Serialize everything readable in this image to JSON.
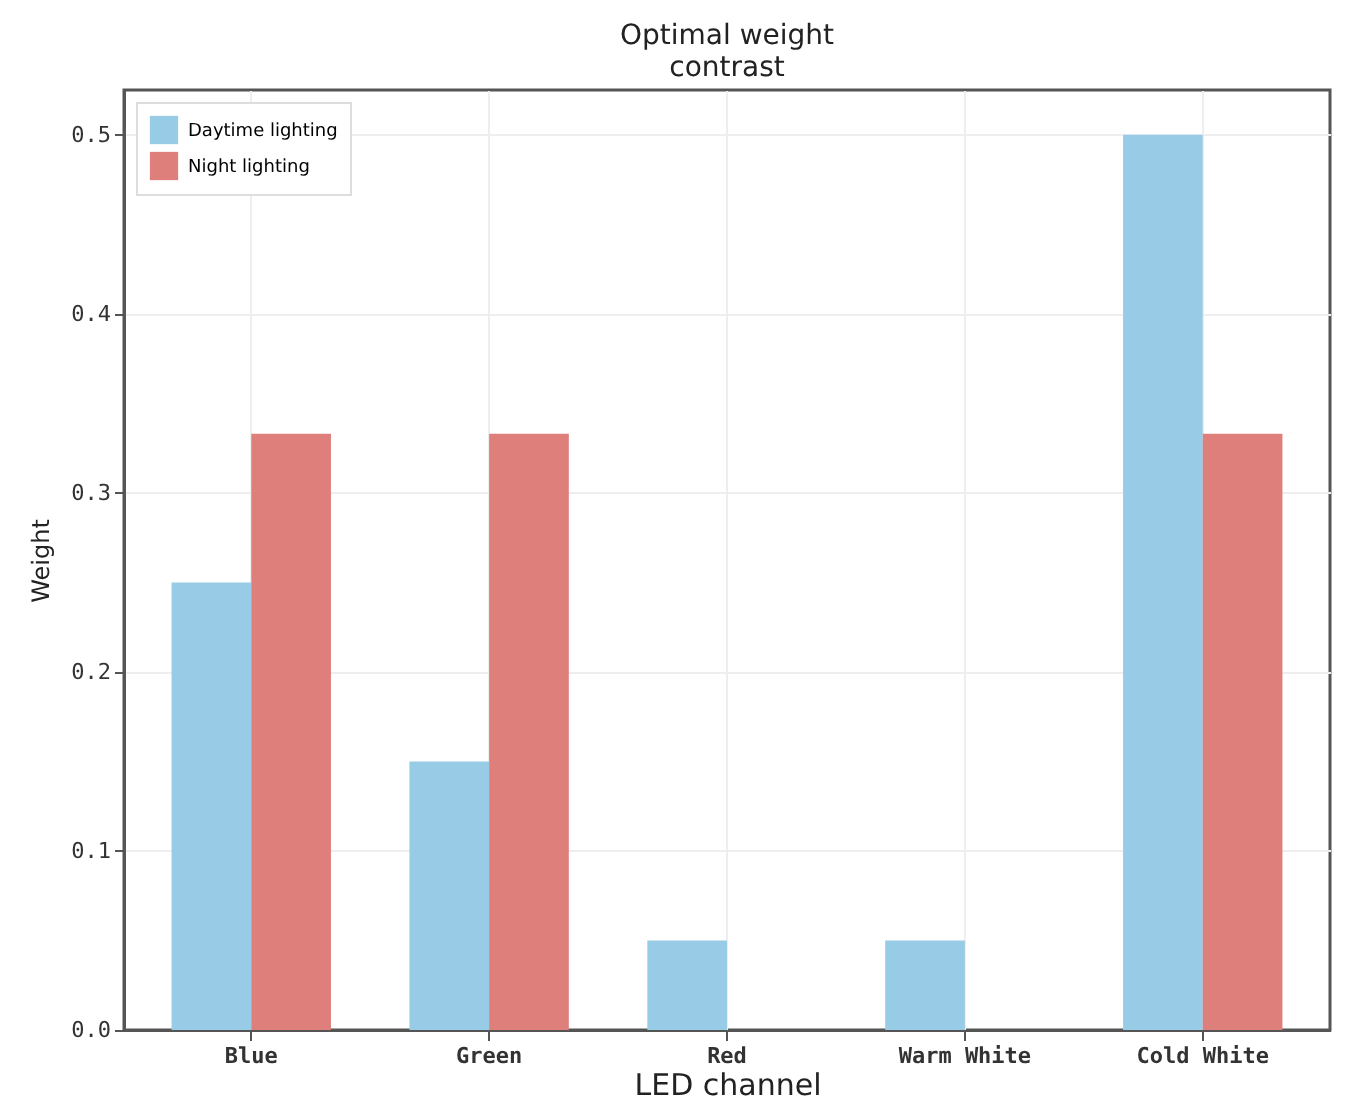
{
  "chart_data": {
    "type": "bar",
    "title": "Optimal weight\ncontrast",
    "xlabel": "LED  channel",
    "ylabel": "Weight",
    "categories": [
      "Blue",
      "Green",
      "Red",
      "Warm White",
      "Cold White"
    ],
    "series": [
      {
        "name": "Daytime lighting",
        "color": "#98cbe6",
        "values": [
          0.25,
          0.15,
          0.05,
          0.05,
          0.5
        ]
      },
      {
        "name": "Night lighting",
        "color": "#de7f7b",
        "values": [
          0.333,
          0.333,
          0,
          0,
          0.333
        ]
      }
    ],
    "ylim": [
      0,
      0.525
    ],
    "yticks": [
      {
        "value": 0,
        "label": "0.0"
      },
      {
        "value": 0.1,
        "label": "0.1"
      },
      {
        "value": 0.2,
        "label": "0.2"
      },
      {
        "value": 0.3,
        "label": "0.3"
      },
      {
        "value": 0.4,
        "label": "0.4"
      },
      {
        "value": 0.5,
        "label": "0.5"
      }
    ],
    "grid": true,
    "legend": "top left"
  }
}
